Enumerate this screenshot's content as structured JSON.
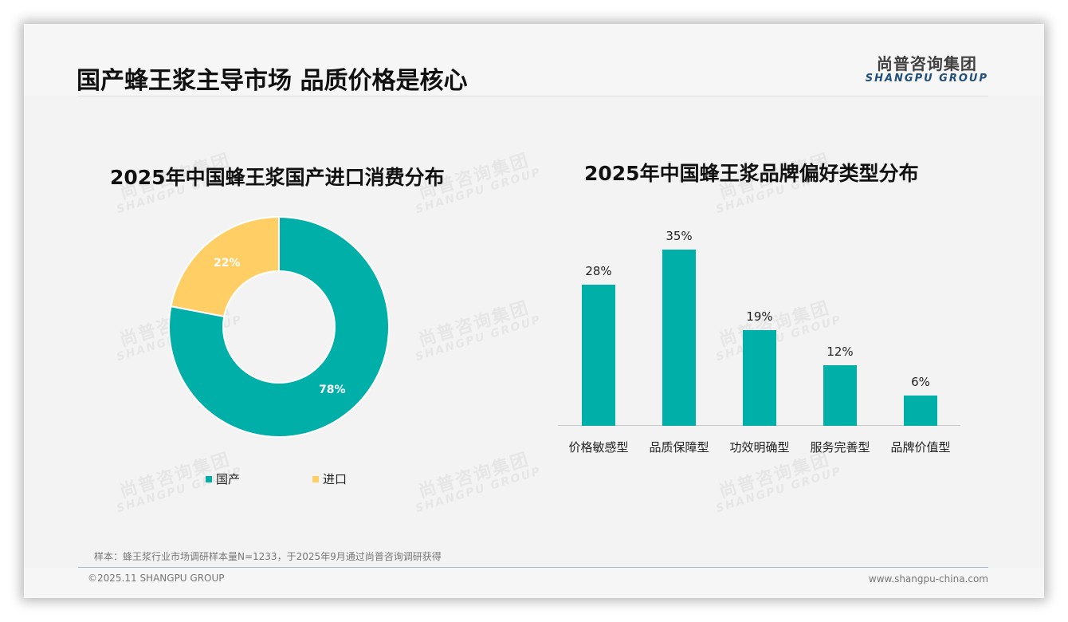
{
  "header": {
    "title": "国产蜂王浆主导市场 品质价格是核心",
    "logo_cn": "尚普咨询集团",
    "logo_en": "SHANGPU GROUP"
  },
  "watermark": {
    "cn": "尚普咨询集团",
    "en": "SHANGPU GROUP"
  },
  "colors": {
    "teal": "#00afa8",
    "yellow": "#ffcf66"
  },
  "chart_data": [
    {
      "type": "pie",
      "style": "donut",
      "title": "2025年中国蜂王浆国产进口消费分布",
      "categories": [
        "国产",
        "进口"
      ],
      "values": [
        78,
        22
      ],
      "labels": [
        "78%",
        "22%"
      ],
      "colors": [
        "#00afa8",
        "#ffcf66"
      ],
      "legend_position": "bottom"
    },
    {
      "type": "bar",
      "title": "2025年中国蜂王浆品牌偏好类型分布",
      "categories": [
        "价格敏感型",
        "品质保障型",
        "功效明确型",
        "服务完善型",
        "品牌价值型"
      ],
      "values": [
        28,
        35,
        19,
        12,
        6
      ],
      "labels": [
        "28%",
        "35%",
        "19%",
        "12%",
        "6%"
      ],
      "unit": "%",
      "xlabel": "",
      "ylabel": "",
      "grid": false,
      "color": "#00afa8"
    }
  ],
  "footer": {
    "note": "样本：蜂王浆行业市场调研样本量N=1233，于2025年9月通过尚普咨询调研获得",
    "copyright": "©2025.11 SHANGPU GROUP",
    "website": "www.shangpu-china.com"
  }
}
